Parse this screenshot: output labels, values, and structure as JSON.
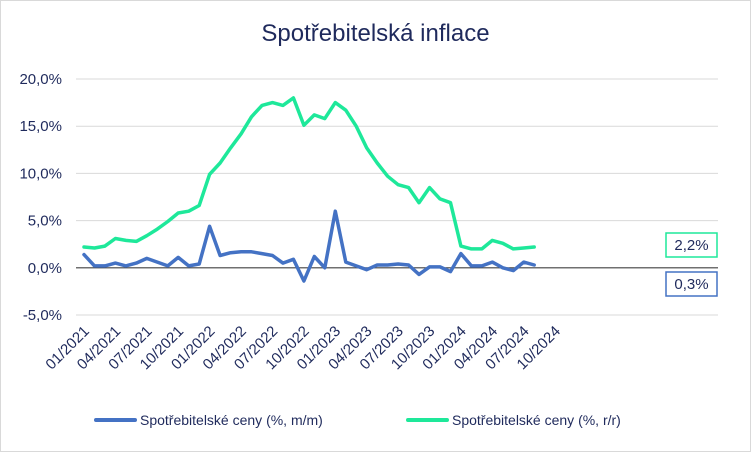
{
  "chart_data": {
    "type": "line",
    "title": "Spotřebitelská inflace",
    "xlabel": "",
    "ylabel": "",
    "x": [
      "01/2021",
      "02/2021",
      "03/2021",
      "04/2021",
      "05/2021",
      "06/2021",
      "07/2021",
      "08/2021",
      "09/2021",
      "10/2021",
      "11/2021",
      "12/2021",
      "01/2022",
      "02/2022",
      "03/2022",
      "04/2022",
      "05/2022",
      "06/2022",
      "07/2022",
      "08/2022",
      "09/2022",
      "10/2022",
      "11/2022",
      "12/2022",
      "01/2023",
      "02/2023",
      "03/2023",
      "04/2023",
      "05/2023",
      "06/2023",
      "07/2023",
      "08/2023",
      "09/2023",
      "10/2023",
      "11/2023",
      "12/2023",
      "01/2024",
      "02/2024",
      "03/2024",
      "04/2024",
      "05/2024",
      "06/2024",
      "07/2024",
      "08/2024"
    ],
    "x_ticks": [
      "01/2021",
      "04/2021",
      "07/2021",
      "10/2021",
      "01/2022",
      "04/2022",
      "07/2022",
      "10/2022",
      "01/2023",
      "04/2023",
      "07/2023",
      "10/2023",
      "01/2024",
      "04/2024",
      "07/2024",
      "10/2024"
    ],
    "y_ticks": [
      "20,0%",
      "15,0%",
      "10,0%",
      "5,0%",
      "0,0%",
      "-5,0%"
    ],
    "ylim": [
      -5,
      20
    ],
    "grid": true,
    "legend": "bottom",
    "series": [
      {
        "name": "Spotřebitelské ceny (%, m/m)",
        "color": "#4472c4",
        "values": [
          1.4,
          0.2,
          0.2,
          0.5,
          0.2,
          0.5,
          1.0,
          0.6,
          0.2,
          1.1,
          0.2,
          0.4,
          4.4,
          1.3,
          1.6,
          1.7,
          1.7,
          1.5,
          1.3,
          0.5,
          0.9,
          -1.4,
          1.2,
          0.0,
          6.0,
          0.6,
          0.2,
          -0.2,
          0.3,
          0.3,
          0.4,
          0.3,
          -0.7,
          0.1,
          0.1,
          -0.4,
          1.5,
          0.2,
          0.2,
          0.6,
          0.0,
          -0.3,
          0.6,
          0.3
        ],
        "end_label": "0,3%"
      },
      {
        "name": "Spotřebitelské ceny (%, r/r)",
        "color": "#1ee89a",
        "values": [
          2.2,
          2.1,
          2.3,
          3.1,
          2.9,
          2.8,
          3.4,
          4.1,
          4.9,
          5.8,
          6.0,
          6.6,
          9.9,
          11.1,
          12.7,
          14.2,
          16.0,
          17.2,
          17.5,
          17.2,
          18.0,
          15.1,
          16.2,
          15.8,
          17.5,
          16.7,
          15.0,
          12.7,
          11.1,
          9.7,
          8.8,
          8.5,
          6.9,
          8.5,
          7.3,
          6.9,
          2.3,
          2.0,
          2.0,
          2.9,
          2.6,
          2.0,
          2.1,
          2.2
        ],
        "end_label": "2,2%"
      }
    ]
  }
}
